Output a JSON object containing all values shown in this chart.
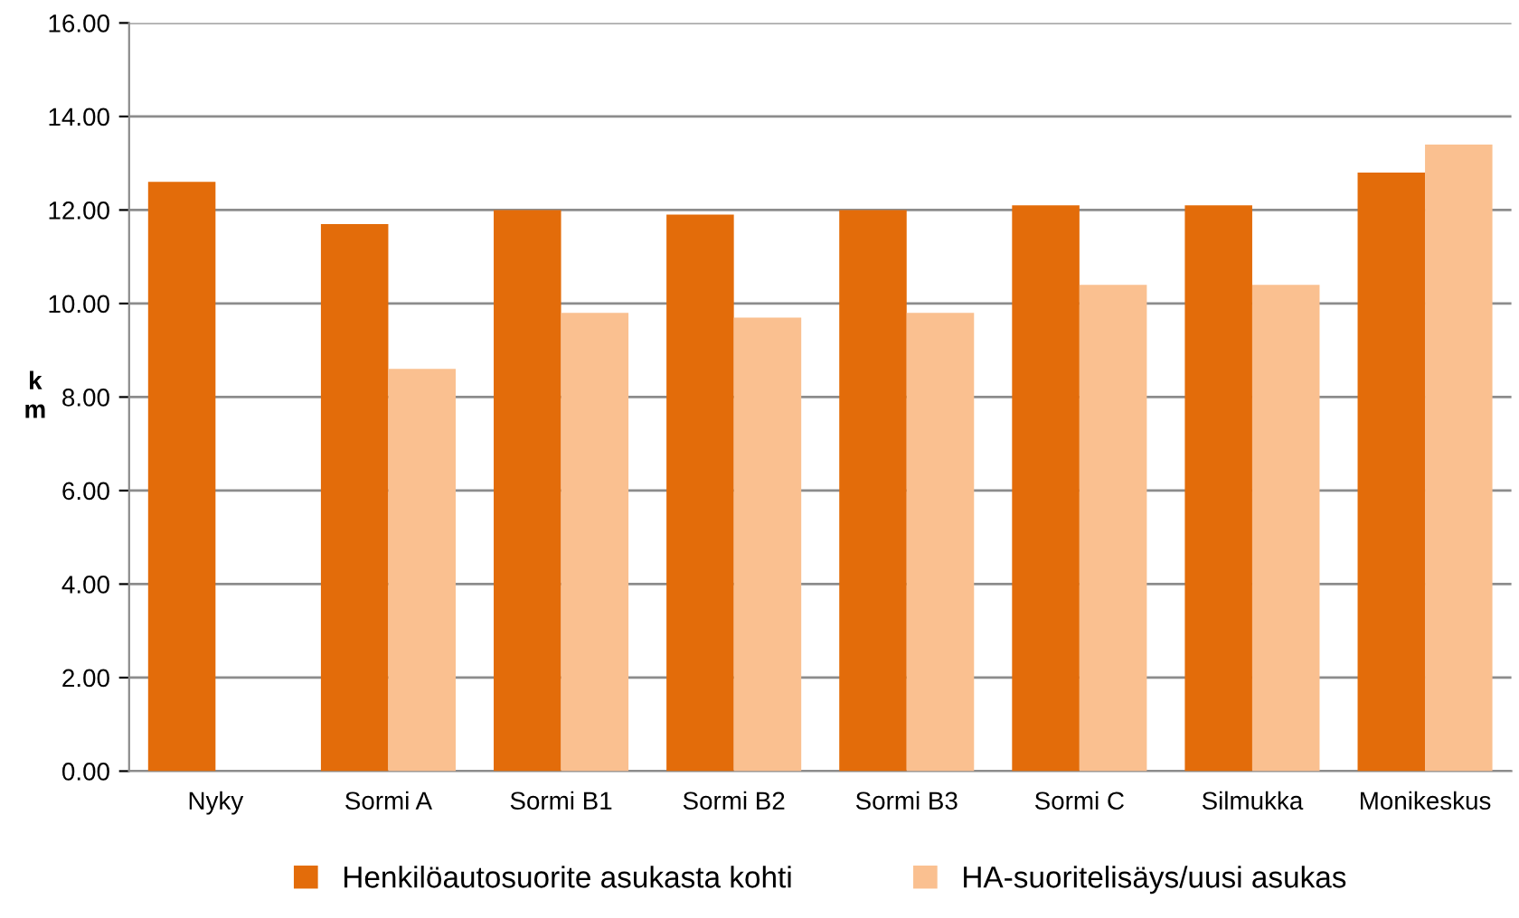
{
  "chart_data": {
    "type": "bar",
    "ylabel": "km",
    "categories": [
      "Nyky",
      "Sormi A",
      "Sormi B1",
      "Sormi B2",
      "Sormi B3",
      "Sormi C",
      "Silmukka",
      "Monikeskus"
    ],
    "series": [
      {
        "name": "Henkilöautosuorite asukasta kohti",
        "color": "#e36c0a",
        "values": [
          12.6,
          11.7,
          12.0,
          11.9,
          12.0,
          12.1,
          12.1,
          12.8
        ]
      },
      {
        "name": "HA-suoritelisäys/uusi asukas",
        "color": "#fac090",
        "values": [
          null,
          8.6,
          9.8,
          9.7,
          9.8,
          10.4,
          10.4,
          13.4
        ]
      }
    ],
    "ylim": [
      0,
      16
    ],
    "yticks": [
      {
        "value": 0,
        "label": "0.00"
      },
      {
        "value": 2,
        "label": "2.00"
      },
      {
        "value": 4,
        "label": "4.00"
      },
      {
        "value": 6,
        "label": "6.00"
      },
      {
        "value": 8,
        "label": "8.00"
      },
      {
        "value": 10,
        "label": "10.00"
      },
      {
        "value": 12,
        "label": "12.00"
      },
      {
        "value": 14,
        "label": "14.00"
      },
      {
        "value": 16,
        "label": "16.00"
      }
    ],
    "grid": "y",
    "legend": "bottom"
  }
}
